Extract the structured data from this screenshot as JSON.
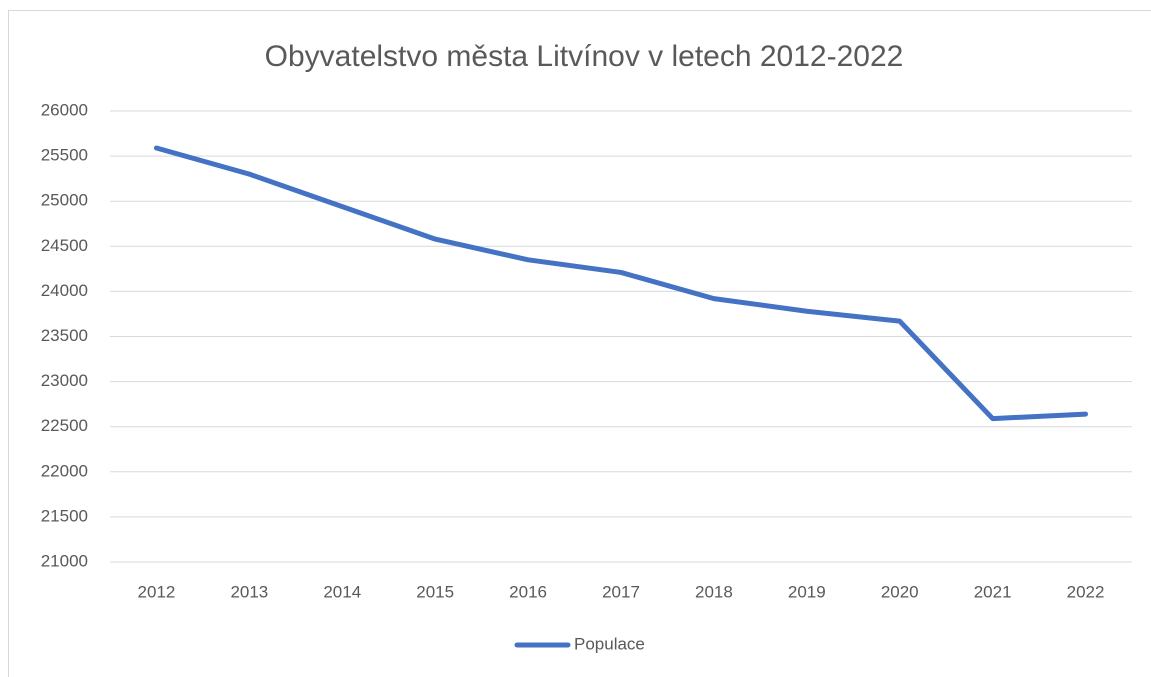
{
  "chart_data": {
    "type": "line",
    "title": "Obyvatelstvo města Litvínov v letech 2012-2022",
    "categories": [
      "2012",
      "2013",
      "2014",
      "2015",
      "2016",
      "2017",
      "2018",
      "2019",
      "2020",
      "2021",
      "2022"
    ],
    "series": [
      {
        "name": "Populace",
        "color": "#4472c4",
        "values": [
          25590,
          25300,
          24940,
          24580,
          24350,
          24210,
          23920,
          23780,
          23670,
          22590,
          22640
        ]
      }
    ],
    "ylim": [
      21000,
      26000
    ],
    "yticks": [
      21000,
      21500,
      22000,
      22500,
      23000,
      23500,
      24000,
      24500,
      25000,
      25500,
      26000
    ],
    "grid": true,
    "legend": "bottom"
  }
}
